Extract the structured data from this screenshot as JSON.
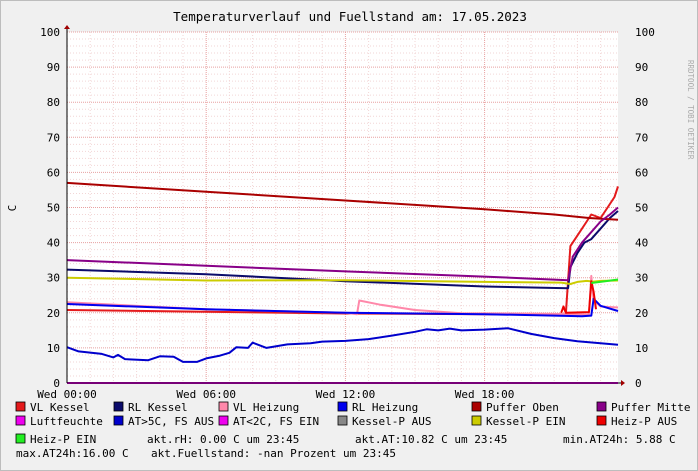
{
  "chart_data": {
    "type": "line",
    "title": "Temperaturverlauf und Fuellstand am: 17.05.2023",
    "watermark": "RRDTOOL / TOBI OETIKER",
    "ylabel": "C",
    "ylim": [
      0,
      100
    ],
    "y_ticks": [
      "0",
      "10",
      "20",
      "30",
      "40",
      "50",
      "60",
      "70",
      "80",
      "90",
      "100"
    ],
    "xlim": [
      0,
      23.75
    ],
    "x_ticks": [
      {
        "h": 0,
        "label": "Wed 00:00"
      },
      {
        "h": 6,
        "label": "Wed 06:00"
      },
      {
        "h": 12,
        "label": "Wed 12:00"
      },
      {
        "h": 18,
        "label": "Wed 18:00"
      }
    ],
    "grid": true,
    "legend_position": "bottom",
    "series": [
      {
        "name": "VL Kessel",
        "color": "#e41a1c",
        "points": [
          [
            0,
            20.8
          ],
          [
            12,
            19.8
          ],
          [
            21.5,
            19.5
          ],
          [
            21.7,
            39
          ],
          [
            22,
            42
          ],
          [
            22.3,
            45
          ],
          [
            22.6,
            48
          ],
          [
            23,
            47
          ],
          [
            23.3,
            50
          ],
          [
            23.6,
            53
          ],
          [
            23.75,
            56
          ]
        ]
      },
      {
        "name": "RL Kessel",
        "color": "#0b0b6b",
        "points": [
          [
            0,
            32.3
          ],
          [
            6,
            31.0
          ],
          [
            12,
            29.0
          ],
          [
            18,
            27.5
          ],
          [
            21.6,
            27.0
          ],
          [
            21.7,
            33
          ],
          [
            22,
            37
          ],
          [
            22.3,
            40
          ],
          [
            22.6,
            41
          ],
          [
            23,
            44
          ],
          [
            23.4,
            47
          ],
          [
            23.75,
            49
          ]
        ]
      },
      {
        "name": "VL Heizung",
        "color": "#ff88aa",
        "points": [
          [
            0,
            23.0
          ],
          [
            6,
            21.0
          ],
          [
            12,
            20.0
          ],
          [
            12.5,
            19.6
          ],
          [
            12.6,
            23.5
          ],
          [
            13.5,
            22.3
          ],
          [
            15,
            20.8
          ],
          [
            17,
            19.9
          ],
          [
            21,
            19.7
          ],
          [
            22.5,
            19.5
          ],
          [
            22.6,
            30.5
          ],
          [
            22.7,
            23.5
          ],
          [
            23,
            21.8
          ],
          [
            23.75,
            21.5
          ]
        ]
      },
      {
        "name": "RL Heizung",
        "color": "#0000ee",
        "points": [
          [
            0,
            22.5
          ],
          [
            6,
            21.0
          ],
          [
            12,
            20.0
          ],
          [
            18,
            19.6
          ],
          [
            21,
            19.2
          ],
          [
            22.2,
            19.0
          ],
          [
            22.6,
            19.2
          ],
          [
            22.7,
            24.0
          ],
          [
            23,
            22.0
          ],
          [
            23.75,
            20.5
          ]
        ]
      },
      {
        "name": "Puffer Oben",
        "color": "#aa0000",
        "points": [
          [
            0,
            57.0
          ],
          [
            6,
            54.5
          ],
          [
            12,
            52.0
          ],
          [
            18,
            49.5
          ],
          [
            21,
            48.0
          ],
          [
            22.5,
            47.0
          ],
          [
            23.75,
            46.5
          ]
        ]
      },
      {
        "name": "Puffer Mitte",
        "color": "#880088",
        "points": [
          [
            0,
            35.0
          ],
          [
            6,
            33.4
          ],
          [
            12,
            31.8
          ],
          [
            18,
            30.3
          ],
          [
            21.6,
            29.3
          ],
          [
            21.8,
            36
          ],
          [
            22.2,
            40
          ],
          [
            22.6,
            43
          ],
          [
            23,
            46
          ],
          [
            23.4,
            48
          ],
          [
            23.75,
            50
          ]
        ]
      },
      {
        "name": "Luftfeuchte",
        "color": "#ee00ee",
        "points": [
          [
            0,
            0
          ],
          [
            23.75,
            0
          ]
        ]
      },
      {
        "name": "AT>5C, FS AUS",
        "color": "#0000cc",
        "points": [
          [
            0,
            10.2
          ],
          [
            0.5,
            9.0
          ],
          [
            1.5,
            8.3
          ],
          [
            2,
            7.3
          ],
          [
            2.2,
            8.0
          ],
          [
            2.5,
            6.8
          ],
          [
            3.5,
            6.5
          ],
          [
            4,
            7.6
          ],
          [
            4.6,
            7.5
          ],
          [
            5,
            6.0
          ],
          [
            5.6,
            6.0
          ],
          [
            6,
            7.0
          ],
          [
            6.6,
            7.8
          ],
          [
            7,
            8.6
          ],
          [
            7.3,
            10.2
          ],
          [
            7.8,
            10.0
          ],
          [
            8,
            11.5
          ],
          [
            8.6,
            10.0
          ],
          [
            9.5,
            11.0
          ],
          [
            10.5,
            11.3
          ],
          [
            11,
            11.8
          ],
          [
            12,
            12.0
          ],
          [
            13,
            12.5
          ],
          [
            14,
            13.5
          ],
          [
            15,
            14.6
          ],
          [
            15.5,
            15.3
          ],
          [
            16,
            15.0
          ],
          [
            16.5,
            15.5
          ],
          [
            17,
            15.0
          ],
          [
            18,
            15.2
          ],
          [
            19,
            15.6
          ],
          [
            20,
            14.0
          ],
          [
            21,
            12.8
          ],
          [
            22,
            11.9
          ],
          [
            23,
            11.3
          ],
          [
            23.75,
            10.9
          ]
        ]
      },
      {
        "name": "AT<2C, FS EIN",
        "color": "#ee00ee",
        "points": []
      },
      {
        "name": "Kessel-P AUS",
        "color": "#888888",
        "points": []
      },
      {
        "name": "Kessel-P EIN",
        "color": "#cccc00",
        "points": [
          [
            0,
            30.0
          ],
          [
            6,
            29.2
          ],
          [
            12,
            29.3
          ],
          [
            18,
            28.8
          ],
          [
            21.3,
            28.6
          ],
          [
            21.7,
            28.2
          ],
          [
            22,
            28.8
          ],
          [
            22.4,
            29.1
          ],
          [
            22.7,
            28.9
          ],
          [
            23,
            29.1
          ],
          [
            23.75,
            29.2
          ]
        ]
      },
      {
        "name": "Heiz-P AUS",
        "color": "#ee0000",
        "points": [
          [
            21.3,
            20.0
          ],
          [
            21.4,
            21.8
          ],
          [
            21.5,
            20.0
          ],
          [
            22.5,
            20.2
          ],
          [
            22.6,
            29.0
          ],
          [
            22.7,
            26.0
          ],
          [
            22.8,
            21.0
          ]
        ]
      },
      {
        "name": "Heiz-P EIN",
        "color": "#22ee22",
        "points": [
          [
            22.6,
            28.5
          ],
          [
            23.2,
            29.0
          ],
          [
            23.75,
            29.5
          ]
        ]
      }
    ]
  },
  "info_line_1": "Heiz-P EIN",
  "info_rh": "akt.rH: 0.00 C um 23:45",
  "info_at": "akt.AT:10.82 C um 23:45",
  "info_min": "min.AT24h: 5.88 C",
  "info_max": "max.AT24h:16.00 C",
  "info_fill": "akt.Fuellstand: -nan Prozent um 23:45"
}
